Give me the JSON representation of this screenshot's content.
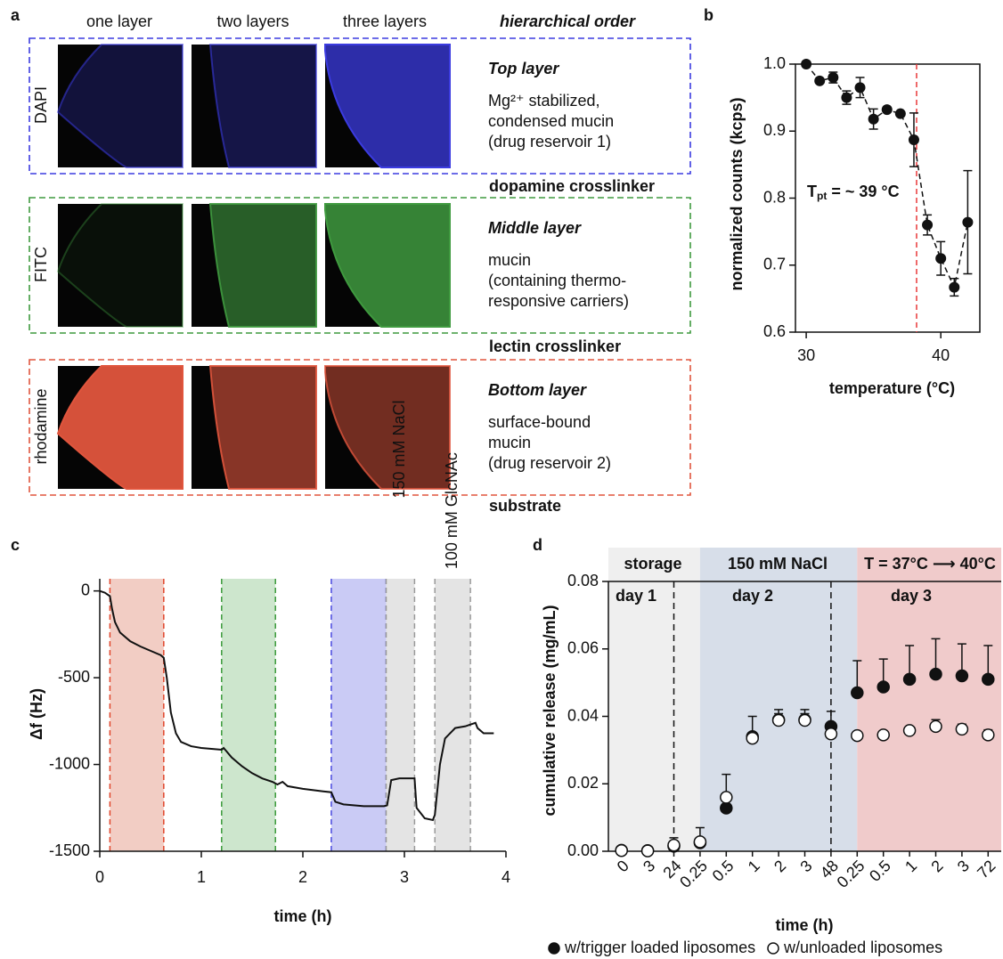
{
  "figure_a": {
    "panel": "a",
    "columns": [
      "one layer",
      "two layers",
      "three layers",
      "hierarchical order"
    ],
    "rows": [
      {
        "stain": "DAPI",
        "title": "Top layer",
        "lines": [
          "Mg²⁺ stabilized,",
          "condensed mucin",
          "(drug reservoir 1)"
        ],
        "color": "#3b3be0",
        "text_color": "#22229e"
      },
      {
        "stain": "FITC",
        "title": "Middle layer",
        "lines": [
          "mucin",
          "(containing thermo-",
          "responsive carriers)"
        ],
        "color": "#3f9a3f",
        "text_color": "#1f7a1f"
      },
      {
        "stain": "rhodamine",
        "title": "Bottom layer",
        "lines": [
          "surface-bound",
          "mucin",
          "(drug reservoir 2)"
        ],
        "color": "#e0553d",
        "text_color": "#c23b1c"
      }
    ],
    "linkers": [
      "dopamine crosslinker",
      "lectin crosslinker",
      "substrate"
    ]
  },
  "chart_data": [
    {
      "type": "scatter",
      "panel": "b",
      "x_label": "temperature (°C)",
      "y_label": "normalized counts (kcps)",
      "x": [
        30,
        31,
        32,
        33,
        34,
        35,
        36,
        37,
        38,
        39,
        40,
        41,
        42
      ],
      "values": [
        1.0,
        0.975,
        0.98,
        0.95,
        0.965,
        0.918,
        0.932,
        0.926,
        0.887,
        0.76,
        0.71,
        0.667,
        0.764
      ],
      "errors": [
        0,
        0,
        0.008,
        0.01,
        0.015,
        0.015,
        0,
        0,
        0.04,
        0.015,
        0.025,
        0.013,
        0.077
      ],
      "color": "#111111",
      "xlim": [
        29.2,
        42.9
      ],
      "ylim": [
        0.6,
        1.0
      ],
      "xticks": [
        30,
        40
      ],
      "yticks": [
        0.6,
        0.7,
        0.8,
        0.9,
        {
          "value": 1,
          "label": "1.0"
        }
      ],
      "threshold_x": 38.2,
      "threshold_color": "#e8393a",
      "annotation": {
        "text": "T",
        "subscript": "pt",
        "suffix": " = ~ 39 °C"
      }
    },
    {
      "type": "line",
      "panel": "c",
      "x_label": "time (h)",
      "y_label": "Δf (Hz)",
      "x": [
        0,
        0.05,
        0.1,
        0.12,
        0.15,
        0.2,
        0.3,
        0.4,
        0.5,
        0.6,
        0.63,
        0.66,
        0.7,
        0.75,
        0.8,
        0.9,
        1.0,
        1.1,
        1.2,
        1.22,
        1.3,
        1.4,
        1.5,
        1.6,
        1.7,
        1.75,
        1.8,
        1.85,
        2.0,
        2.2,
        2.28,
        2.32,
        2.4,
        2.6,
        2.8,
        2.83,
        2.87,
        2.95,
        3.05,
        3.1,
        3.12,
        3.2,
        3.28,
        3.3,
        3.35,
        3.4,
        3.5,
        3.6,
        3.65,
        3.7,
        3.72,
        3.78,
        3.88
      ],
      "values": [
        0,
        -10,
        -30,
        -100,
        -180,
        -240,
        -290,
        -320,
        -345,
        -370,
        -385,
        -500,
        -700,
        -820,
        -870,
        -895,
        -905,
        -910,
        -915,
        -905,
        -960,
        -1010,
        -1050,
        -1080,
        -1100,
        -1115,
        -1100,
        -1125,
        -1140,
        -1155,
        -1160,
        -1215,
        -1230,
        -1240,
        -1240,
        -1235,
        -1090,
        -1080,
        -1080,
        -1080,
        -1250,
        -1310,
        -1320,
        -1290,
        -1000,
        -850,
        -790,
        -780,
        -770,
        -760,
        -790,
        -820,
        -820
      ],
      "color": "#111111",
      "xlim": [
        0,
        4
      ],
      "ylim": [
        -1500,
        70
      ],
      "xticks": [
        0,
        1,
        2,
        3,
        4
      ],
      "yticks": [
        0,
        -500,
        -1000,
        -1500
      ],
      "regions": [
        {
          "x": [
            0.1,
            0.63
          ],
          "color": "#f2cdc4",
          "edge": "#e0452a"
        },
        {
          "x": [
            1.2,
            1.73
          ],
          "color": "#cde6cd",
          "edge": "#3a9a3a"
        },
        {
          "x": [
            2.28,
            2.82
          ],
          "color": "#cacbf5",
          "edge": "#4a4ae0"
        },
        {
          "x": [
            2.82,
            3.1
          ],
          "color": "#e4e4e4",
          "edge": "#999999",
          "label": "150 mM NaCl"
        },
        {
          "x": [
            3.3,
            3.65
          ],
          "color": "#e4e4e4",
          "edge": "#999999",
          "label": "100 mM GlcNAc"
        }
      ]
    },
    {
      "type": "scatter",
      "panel": "d",
      "x_label": "time (h)",
      "y_label": "cumulative release (mg/mL)",
      "categories": [
        "0",
        "3",
        "24",
        "0.25",
        "0.5",
        "1",
        "2",
        "3",
        "48",
        "0.25",
        "0.5",
        "1",
        "2",
        "3",
        "72"
      ],
      "series": [
        {
          "name": "w/trigger loaded liposomes",
          "color": "#111111",
          "values": [
            0.0003,
            0.0002,
            0.0015,
            0.0025,
            0.0128,
            0.034,
            0.039,
            0.039,
            0.037,
            0.047,
            0.0487,
            0.051,
            0.0525,
            0.052,
            0.051
          ],
          "errors": [
            0,
            0,
            0.0025,
            0.0045,
            0.01,
            0.006,
            0.003,
            0.003,
            0.0045,
            0.0095,
            0.0083,
            0.01,
            0.0105,
            0.0095,
            0.01
          ]
        },
        {
          "name": "w/unloaded liposomes",
          "color": "#ffffff",
          "values": [
            0.0002,
            0.0001,
            0.0018,
            0.0028,
            0.016,
            0.0335,
            0.0388,
            0.0388,
            0.0348,
            0.0343,
            0.0345,
            0.0358,
            0.037,
            0.0362,
            0.0345
          ],
          "errors": [
            0,
            0,
            0,
            0,
            0,
            0,
            0.002,
            0.002,
            0,
            0,
            0,
            0.001,
            0.002,
            0.0015,
            0.0015
          ]
        }
      ],
      "ylim": [
        0,
        0.08
      ],
      "yticks": [
        {
          "value": 0,
          "label": "0.00"
        },
        {
          "value": 0.02,
          "label": "0.02"
        },
        {
          "value": 0.04,
          "label": "0.04"
        },
        {
          "value": 0.06,
          "label": "0.06"
        },
        {
          "value": 0.08,
          "label": "0.08"
        }
      ],
      "phases": [
        {
          "label": "storage",
          "day": "day 1",
          "color": "#efefef"
        },
        {
          "label": "150 mM NaCl",
          "day": "day 2",
          "color": "#d7dee9"
        },
        {
          "label": "T = 37°C ⟶ 40°C",
          "day": "day 3",
          "color": "#f0cbcb"
        }
      ]
    }
  ]
}
